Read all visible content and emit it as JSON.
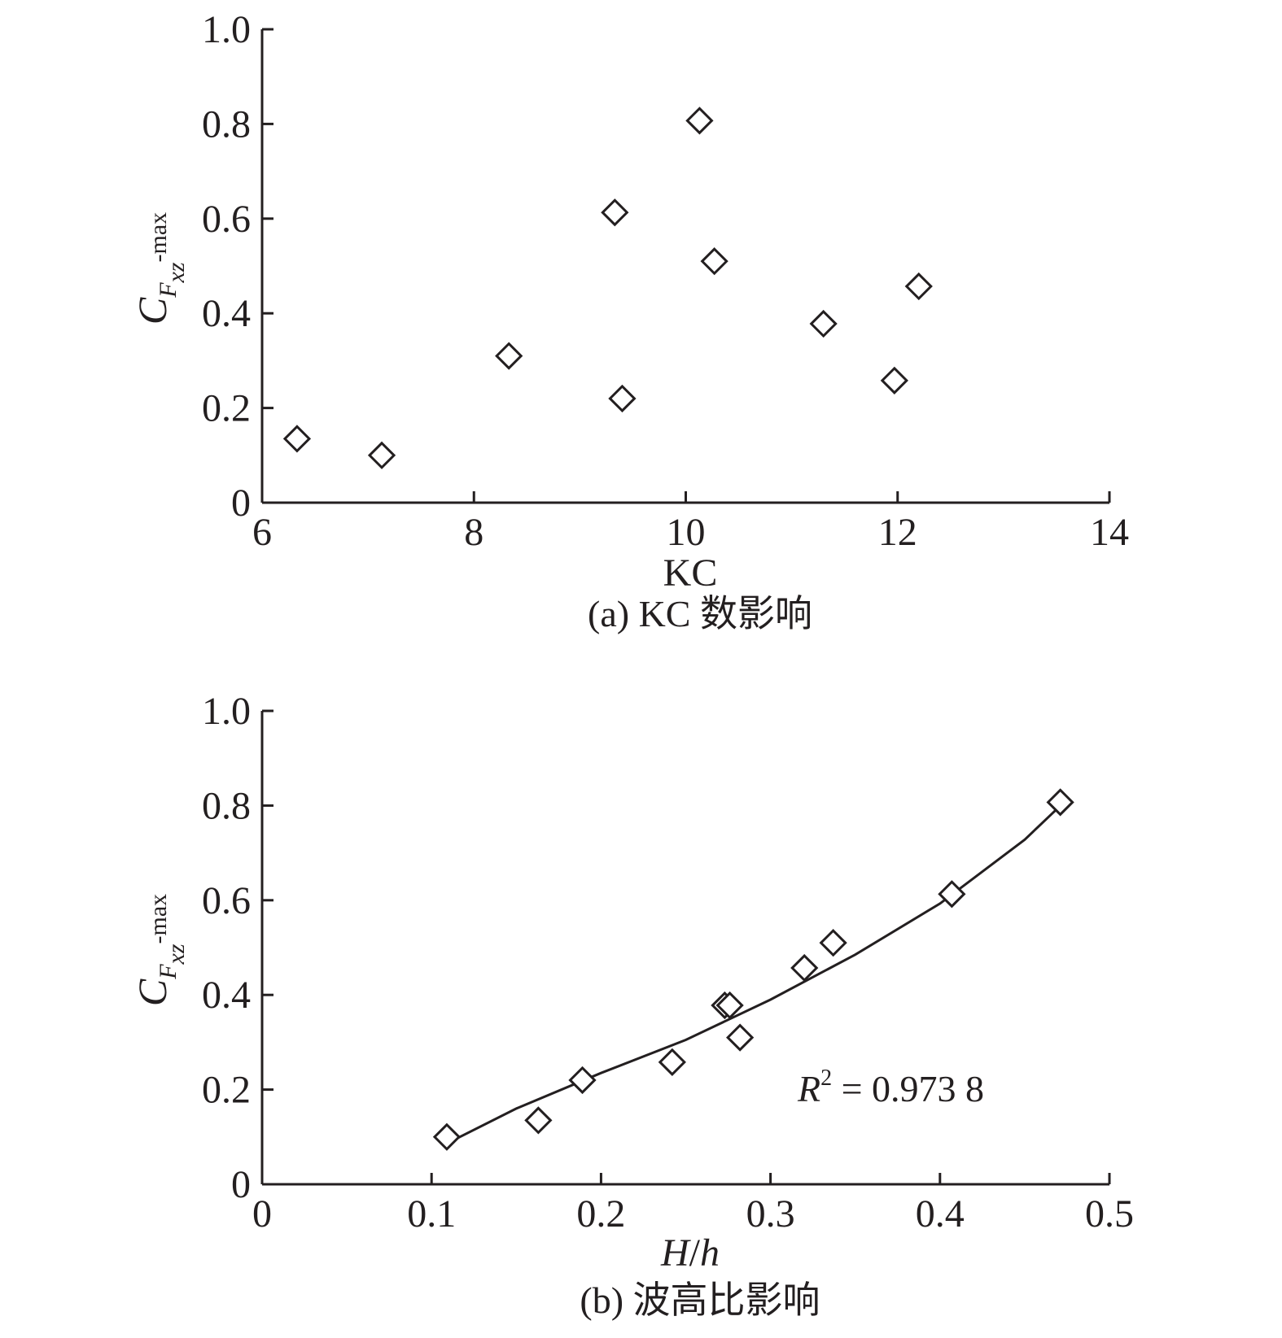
{
  "chart_data": [
    {
      "type": "scatter",
      "panel": "a",
      "caption": "(a) KC 数影响",
      "xlabel": "KC",
      "ylabel": {
        "main": "C",
        "sub1": "F",
        "sub2": "xz",
        "suffix": "-max"
      },
      "xlim": [
        6,
        14
      ],
      "ylim": [
        0,
        1.0
      ],
      "xticks": [
        6,
        8,
        10,
        12,
        14
      ],
      "xtick_labels": [
        "6",
        "8",
        "10",
        "12",
        "14"
      ],
      "yticks": [
        0,
        0.2,
        0.4,
        0.6,
        0.8,
        1.0
      ],
      "ytick_labels": [
        "0",
        "0.2",
        "0.4",
        "0.6",
        "0.8",
        "1.0"
      ],
      "grid": false,
      "series": [
        {
          "marker": "diamond-open",
          "points": [
            {
              "x": 6.33,
              "y": 0.135
            },
            {
              "x": 7.13,
              "y": 0.1
            },
            {
              "x": 8.33,
              "y": 0.31
            },
            {
              "x": 9.33,
              "y": 0.613
            },
            {
              "x": 9.4,
              "y": 0.22
            },
            {
              "x": 10.13,
              "y": 0.807
            },
            {
              "x": 10.27,
              "y": 0.51
            },
            {
              "x": 11.3,
              "y": 0.378
            },
            {
              "x": 11.97,
              "y": 0.258
            },
            {
              "x": 12.2,
              "y": 0.457
            }
          ]
        }
      ]
    },
    {
      "type": "scatter",
      "panel": "b",
      "caption": "(b) 波高比影响",
      "xlabel": {
        "main": "H",
        "sep": "/",
        "tail": "h"
      },
      "ylabel": {
        "main": "C",
        "sub1": "F",
        "sub2": "xz",
        "suffix": "-max"
      },
      "xlim": [
        0,
        0.5
      ],
      "ylim": [
        0,
        1.0
      ],
      "xticks": [
        0,
        0.1,
        0.2,
        0.3,
        0.4,
        0.5
      ],
      "xtick_labels": [
        "0",
        "0.1",
        "0.2",
        "0.3",
        "0.4",
        "0.5"
      ],
      "yticks": [
        0,
        0.2,
        0.4,
        0.6,
        0.8,
        1.0
      ],
      "ytick_labels": [
        "0",
        "0.2",
        "0.4",
        "0.6",
        "0.8",
        "1.0"
      ],
      "grid": false,
      "annotation": {
        "r": "R",
        "sup": "2",
        "rest": " = 0.973 8"
      },
      "series": [
        {
          "marker": "diamond-open",
          "points": [
            {
              "x": 0.109,
              "y": 0.1
            },
            {
              "x": 0.163,
              "y": 0.135
            },
            {
              "x": 0.189,
              "y": 0.22
            },
            {
              "x": 0.242,
              "y": 0.258
            },
            {
              "x": 0.273,
              "y": 0.378
            },
            {
              "x": 0.276,
              "y": 0.378
            },
            {
              "x": 0.282,
              "y": 0.31
            },
            {
              "x": 0.32,
              "y": 0.457
            },
            {
              "x": 0.337,
              "y": 0.51
            },
            {
              "x": 0.407,
              "y": 0.613
            },
            {
              "x": 0.471,
              "y": 0.807
            }
          ]
        }
      ],
      "fit_curve": {
        "type": "quadratic",
        "x": [
          0.11,
          0.15,
          0.2,
          0.25,
          0.3,
          0.35,
          0.4,
          0.45,
          0.47
        ],
        "y": [
          0.088,
          0.16,
          0.235,
          0.305,
          0.39,
          0.485,
          0.593,
          0.728,
          0.796
        ]
      }
    }
  ]
}
